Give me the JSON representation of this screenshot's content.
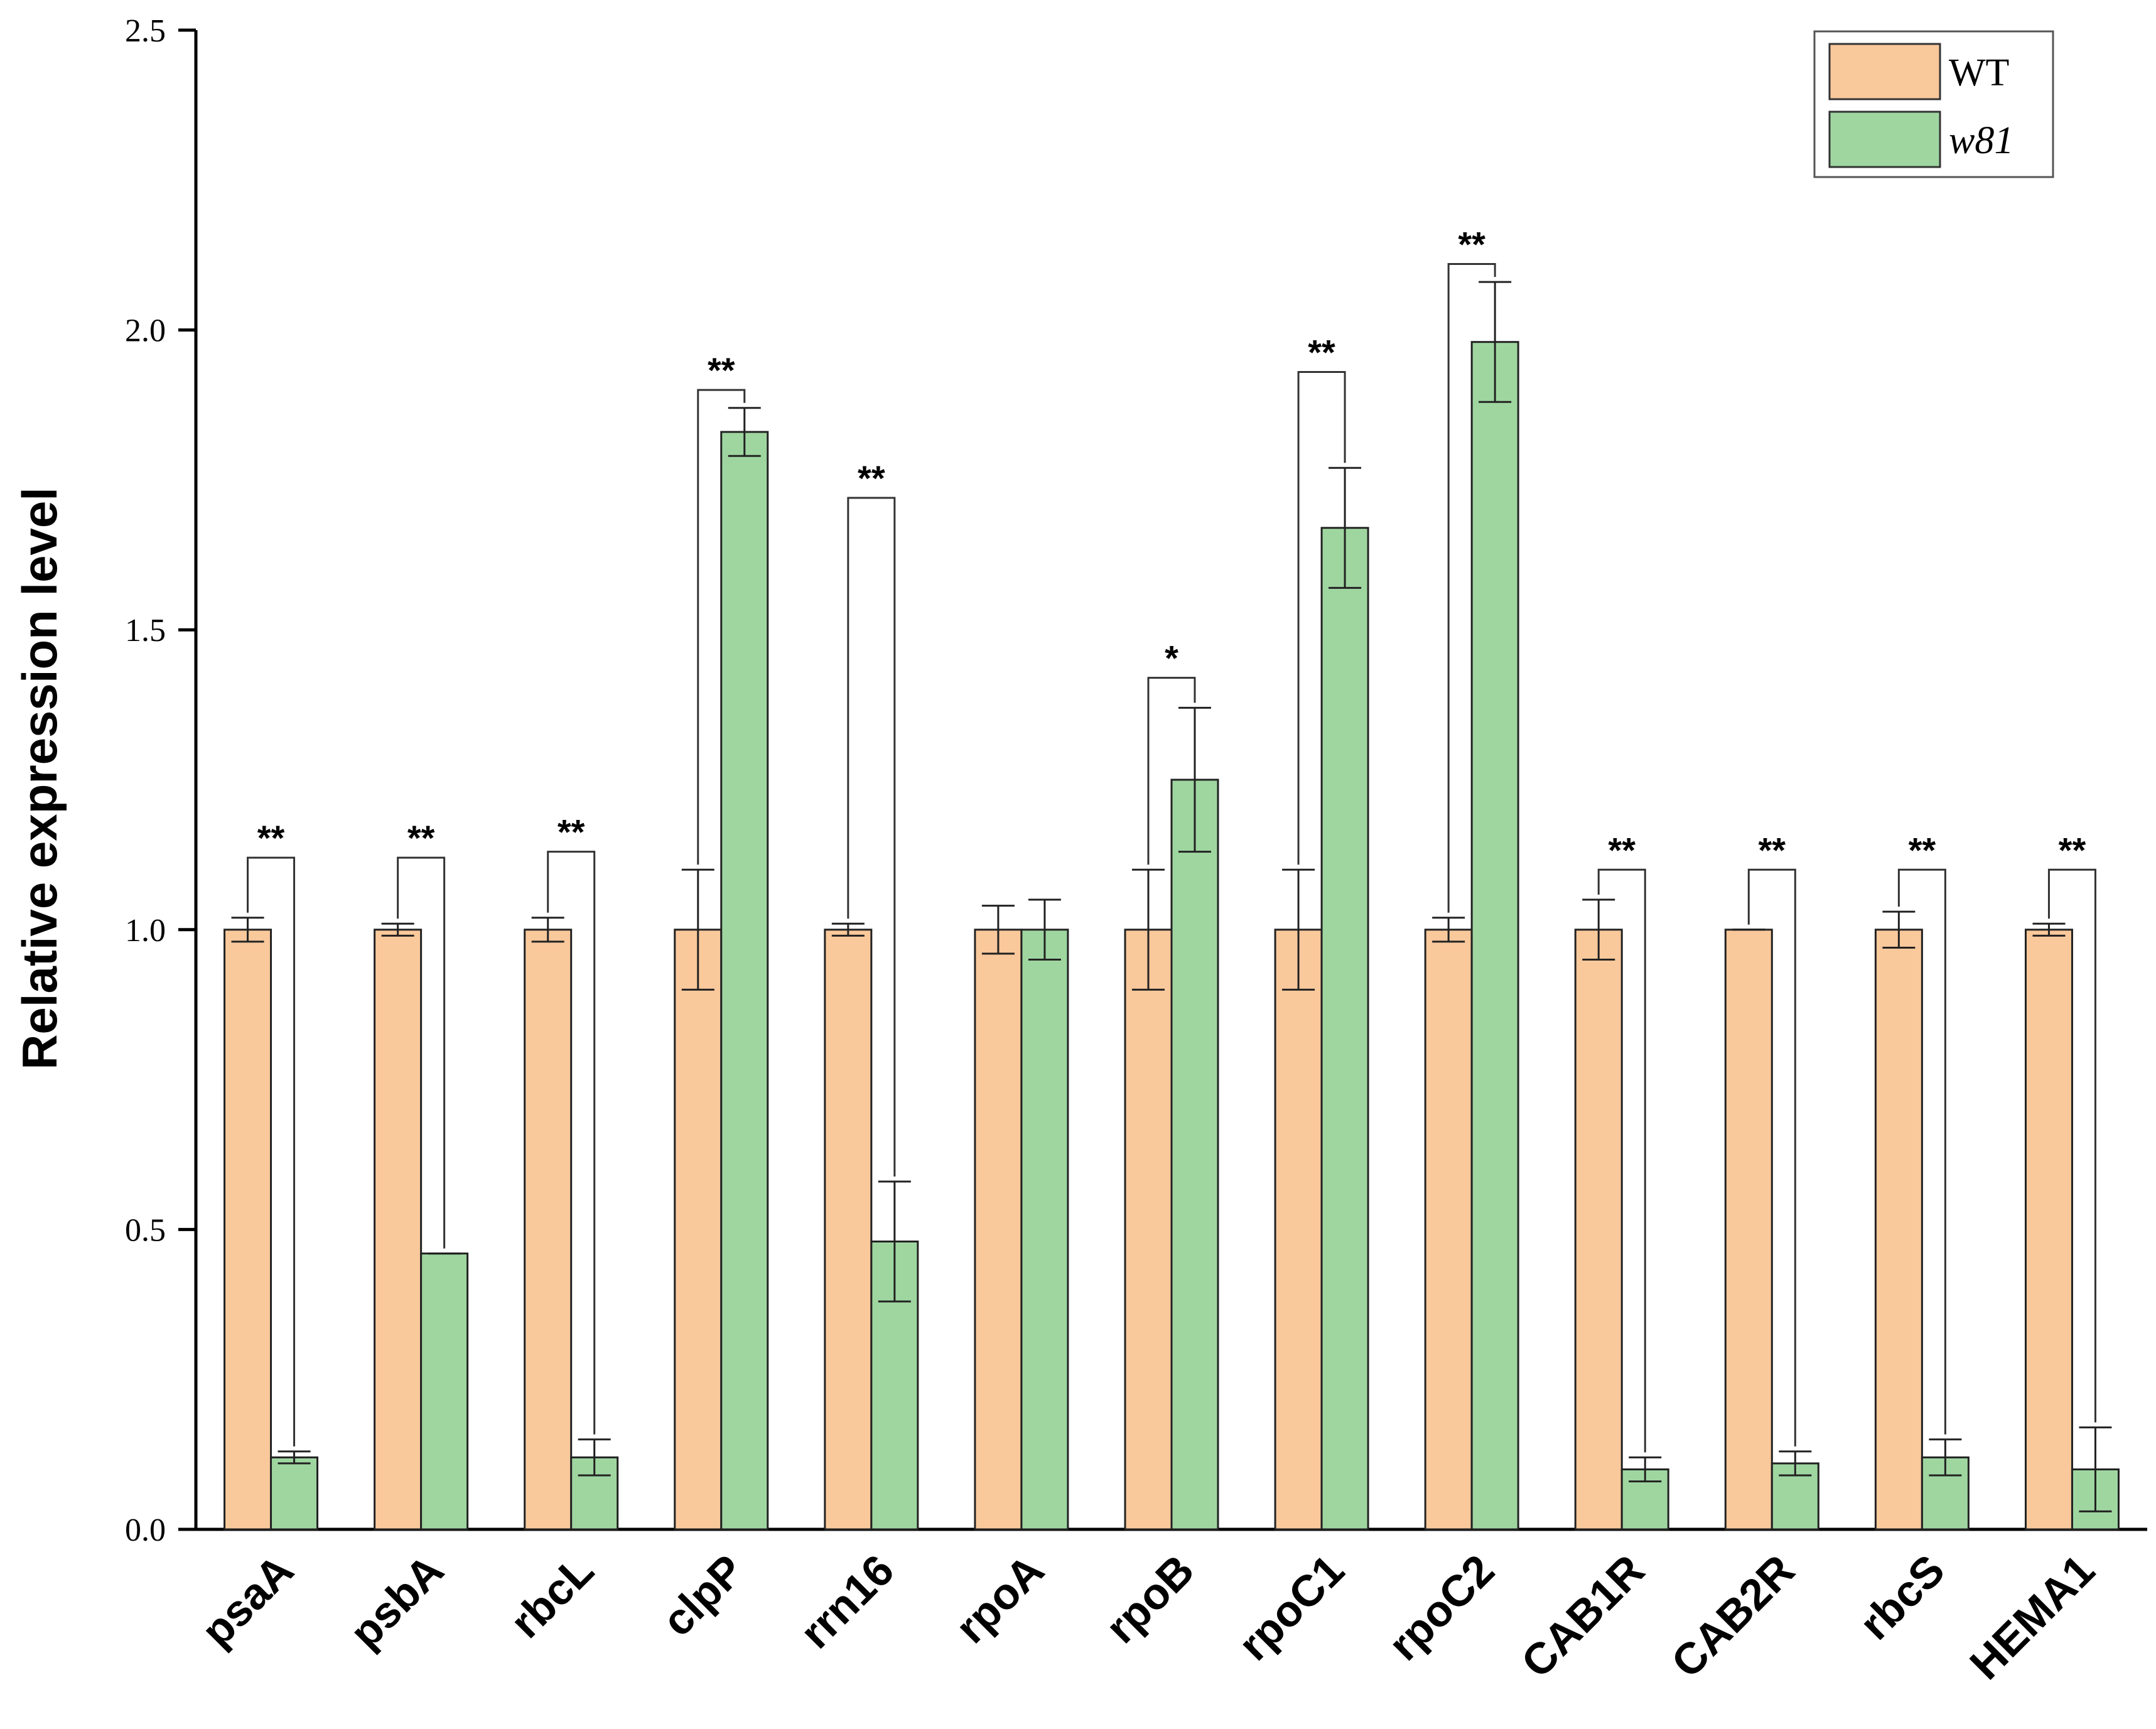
{
  "chart_data": {
    "type": "bar",
    "title": "",
    "xlabel": "",
    "ylabel": "Relative expression level",
    "ylim": [
      0,
      2.5
    ],
    "yticks": [
      "0.0",
      "0.5",
      "1.0",
      "1.5",
      "2.0",
      "2.5"
    ],
    "categories": [
      "psaA",
      "psbA",
      "rbcL",
      "clpP",
      "rrn16",
      "rpoA",
      "rpoB",
      "rpoC1",
      "rpoC2",
      "CAB1R",
      "CAB2R",
      "rbcS",
      "HEMA1"
    ],
    "series": [
      {
        "name": "WT",
        "color": "#f9c89b",
        "values": [
          1.0,
          1.0,
          1.0,
          1.0,
          1.0,
          1.0,
          1.0,
          1.0,
          1.0,
          1.0,
          1.0,
          1.0,
          1.0
        ],
        "errors": [
          0.02,
          0.01,
          0.02,
          0.1,
          0.01,
          0.04,
          0.1,
          0.1,
          0.02,
          0.05,
          0.0,
          0.03,
          0.01
        ]
      },
      {
        "name": "w81",
        "color": "#9fd6a0",
        "values": [
          0.12,
          0.46,
          0.12,
          1.83,
          0.48,
          1.0,
          1.25,
          1.67,
          1.98,
          0.1,
          0.11,
          0.12,
          0.1
        ],
        "errors": [
          0.01,
          0.0,
          0.03,
          0.04,
          0.1,
          0.05,
          0.12,
          0.1,
          0.1,
          0.02,
          0.02,
          0.03,
          0.07
        ]
      }
    ],
    "significance": [
      "**",
      "**",
      "**",
      "**",
      "**",
      "",
      "*",
      "**",
      "**",
      "**",
      "**",
      "**",
      "**"
    ],
    "significance_heights": [
      1.12,
      1.12,
      1.13,
      1.9,
      1.72,
      null,
      1.42,
      1.93,
      2.11,
      1.1,
      1.1,
      1.1,
      1.1
    ],
    "legend_position": "top-right"
  }
}
